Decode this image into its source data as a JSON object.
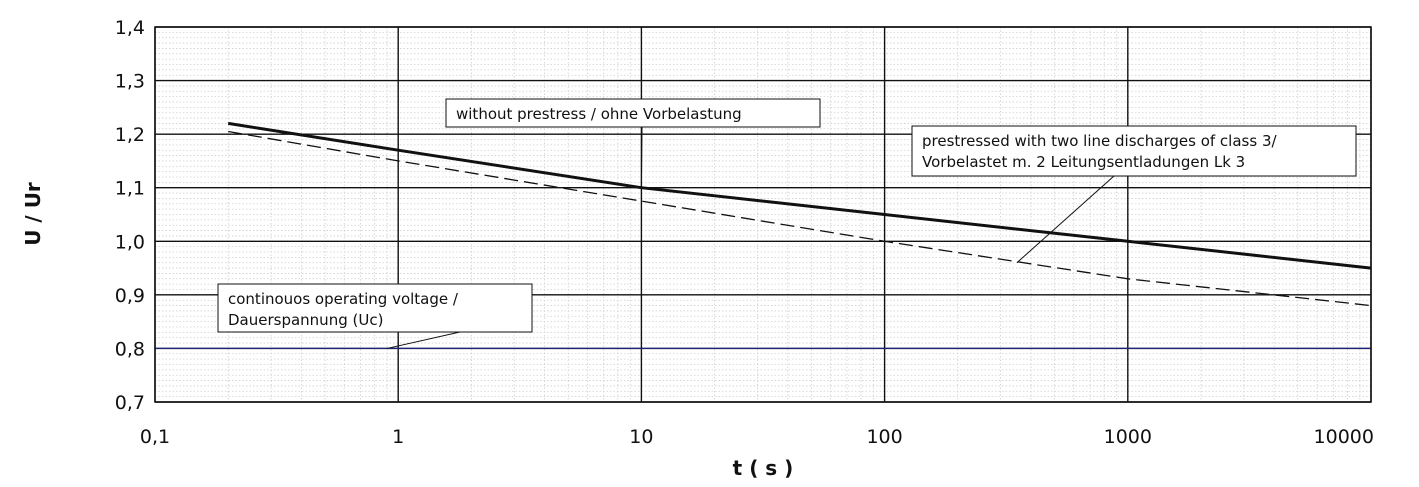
{
  "chart_data": {
    "type": "line",
    "xscale": "log",
    "xlim": [
      0.1,
      10000
    ],
    "ylim": [
      0.7,
      1.4
    ],
    "xticks": [
      0.1,
      1,
      10,
      100,
      1000,
      10000
    ],
    "xtick_labels": [
      "0,1",
      "1",
      "10",
      "100",
      "1000",
      "10000"
    ],
    "yticks": [
      0.7,
      0.8,
      0.9,
      1.0,
      1.1,
      1.2,
      1.3,
      1.4
    ],
    "ytick_labels": [
      "0,7",
      "0,8",
      "0,9",
      "1,0",
      "1,1",
      "1,2",
      "1,3",
      "1,4"
    ],
    "xlabel": "t ( s )",
    "ylabel": "U / Ur",
    "grid": true,
    "series": [
      {
        "style": "solid",
        "color": "#111111",
        "x": [
          0.2,
          1,
          10,
          100,
          1000,
          10000
        ],
        "y": [
          1.22,
          1.17,
          1.1,
          1.05,
          1.0,
          0.95
        ]
      },
      {
        "style": "dashed",
        "color": "#111111",
        "x": [
          0.2,
          1,
          10,
          100,
          1000,
          10000
        ],
        "y": [
          1.205,
          1.15,
          1.075,
          1.0,
          0.93,
          0.88
        ]
      },
      {
        "style": "solid",
        "color": "#1a237e",
        "x": [
          0.1,
          10000
        ],
        "y": [
          0.8,
          0.8
        ]
      }
    ],
    "annotations": [
      {
        "lines": [
          "without prestress / ohne Vorbelastung"
        ],
        "target_x": 10,
        "target_y": 1.1
      },
      {
        "lines": [
          "prestressed with two line discharges of class 3/",
          "Vorbelastet m. 2 Leitungsentladungen Lk 3"
        ],
        "target_x": 350,
        "target_y": 0.96
      },
      {
        "lines": [
          "continouos operating voltage /",
          "Dauerspannung  (Uc)"
        ],
        "target_x": 0.9,
        "target_y": 0.8
      }
    ]
  }
}
